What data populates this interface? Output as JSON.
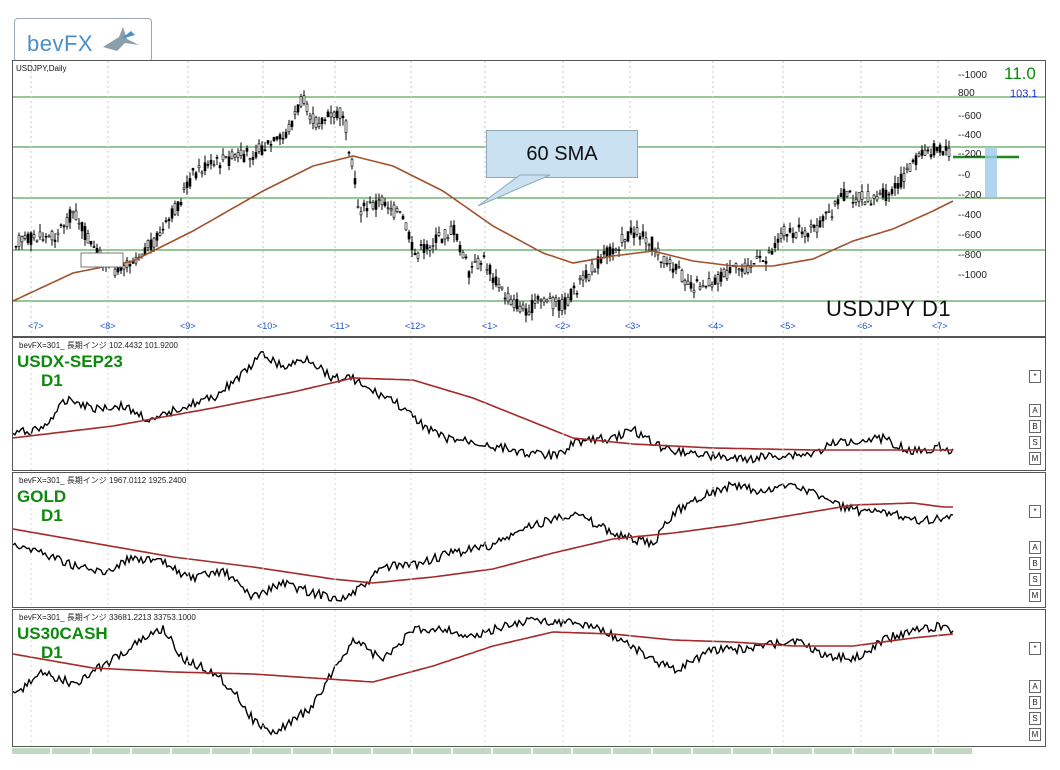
{
  "logo": {
    "text": "bevFX"
  },
  "main_chart": {
    "header": "USDJPY,Daily",
    "symbol_label": "USDJPY  D1",
    "callout": "60 SMA",
    "spread_value": "11.0",
    "spread_sub": "103.1",
    "month_labels": [
      "<7>",
      "<8>",
      "<9>",
      "<10>",
      "<11>",
      "<12>",
      "<1>",
      "<2>",
      "<3>",
      "<4>",
      "<5>",
      "<6>",
      "<7>"
    ],
    "scale_labels": [
      "--1000",
      "800",
      "--600",
      "--400",
      "--200",
      "--0",
      "--200",
      "--400",
      "--600",
      "--800",
      "--1000"
    ]
  },
  "subcharts": [
    {
      "header": "bevFX=301_ 長期インジ 102.4432 101.9200",
      "name": "USDX-SEP23",
      "tf": "D1"
    },
    {
      "header": "bevFX=301_ 長期インジ 1967.0112 1925.2400",
      "name": "GOLD",
      "tf": "D1"
    },
    {
      "header": "bevFX=301_ 長期インジ 33681.2213 33753.1000",
      "name": "US30CASH",
      "tf": "D1"
    }
  ],
  "side_buttons": [
    "*",
    "A",
    "B",
    "S",
    "M"
  ],
  "colors": {
    "price": "#000000",
    "sma": "#a0522d",
    "sub_sma": "#a52a2a",
    "gridline": "#2f8f2f",
    "label_green": "#0d8a0d",
    "month_blue": "#1b4fd1",
    "callout_fill": "#c9e1f0"
  },
  "chart_data": [
    {
      "type": "line",
      "title": "USDJPY  D1",
      "series": [],
      "x_months": [
        "<7>",
        "<8>",
        "<9>",
        "<10>",
        "<11>",
        "<12>",
        "<1>",
        "<2>",
        "<3>",
        "<4>",
        "<5>",
        "<6>",
        "<7>"
      ],
      "annotations": [
        "60 SMA"
      ]
    },
    {
      "type": "line",
      "title": "USDX-SEP23 D1",
      "series": []
    },
    {
      "type": "line",
      "title": "GOLD D1",
      "series": []
    },
    {
      "type": "line",
      "title": "US30CASH D1",
      "series": []
    }
  ]
}
